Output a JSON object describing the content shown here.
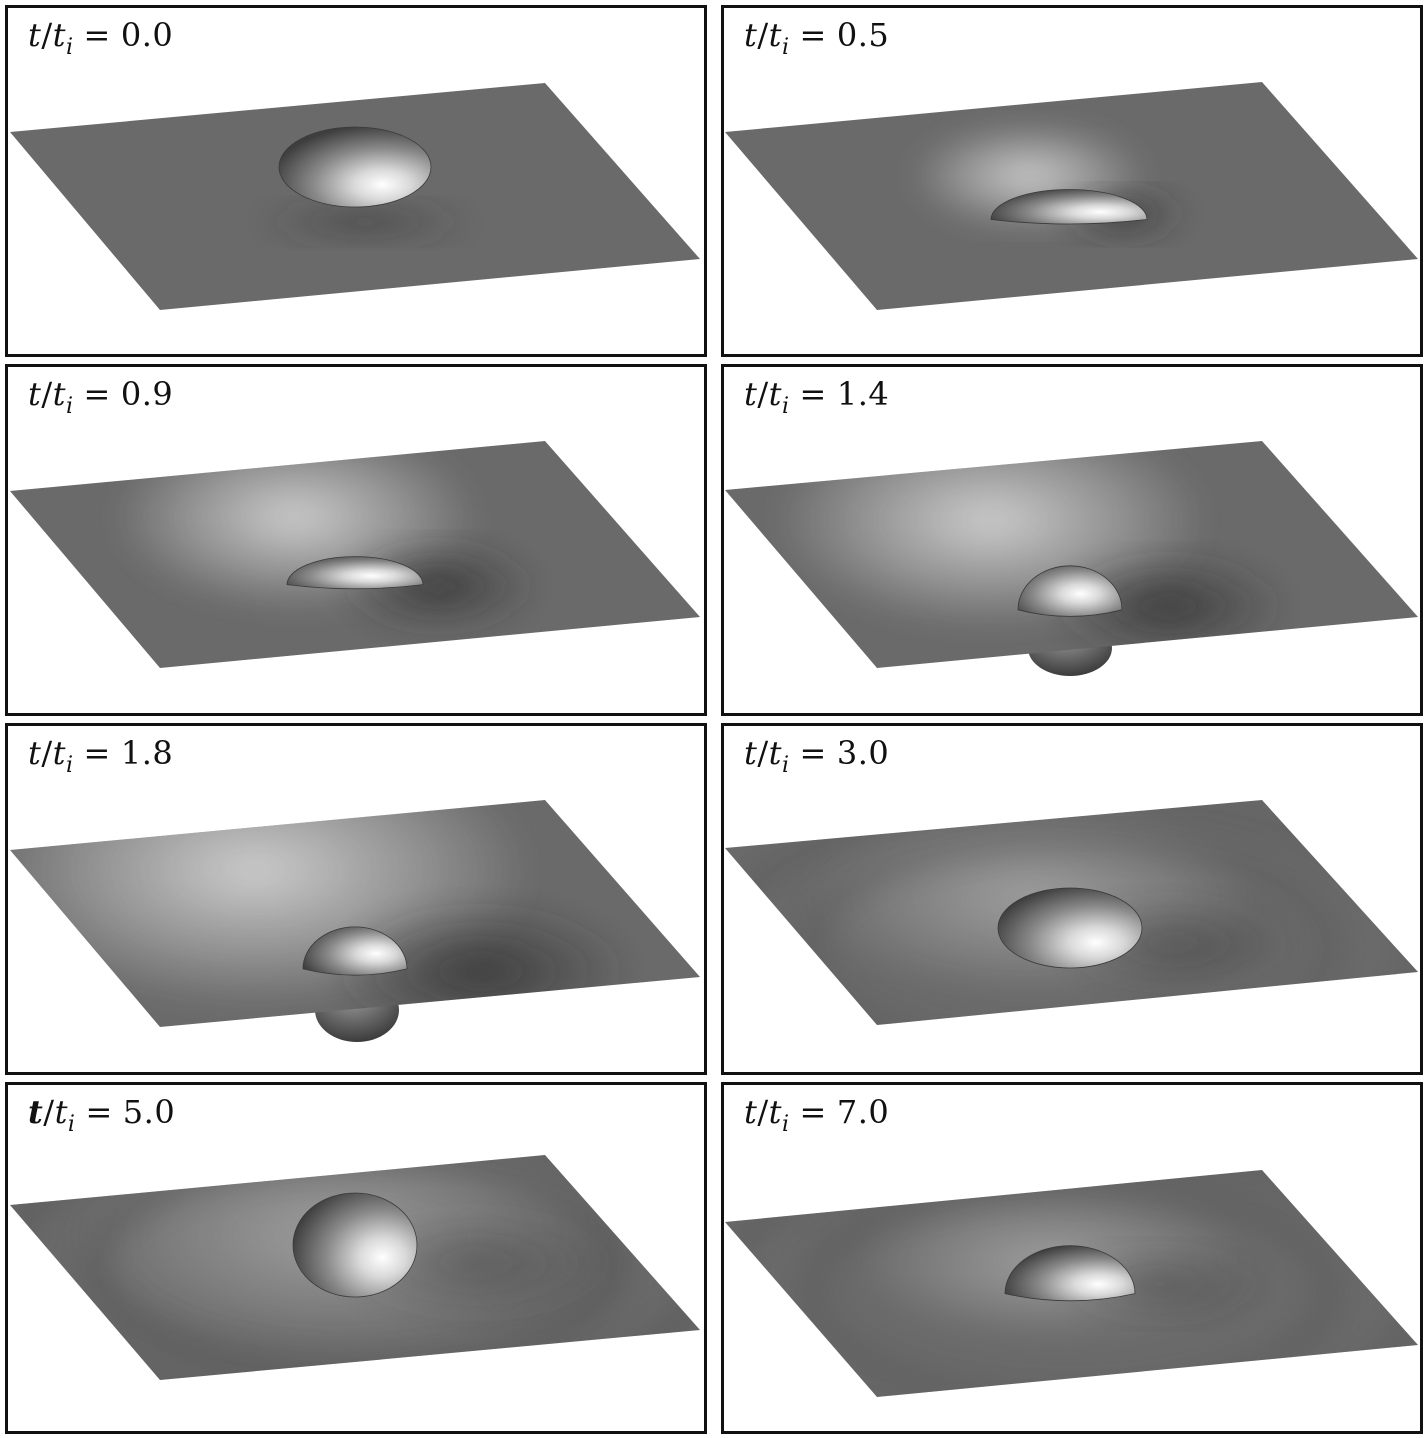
{
  "figure": {
    "panels": [
      {
        "label_var": "t",
        "label_sub": "i",
        "label_value": "0.0",
        "bold_t": false
      },
      {
        "label_var": "t",
        "label_sub": "i",
        "label_value": "0.5",
        "bold_t": false
      },
      {
        "label_var": "t",
        "label_sub": "i",
        "label_value": "0.9",
        "bold_t": false
      },
      {
        "label_var": "t",
        "label_sub": "i",
        "label_value": "1.4",
        "bold_t": false
      },
      {
        "label_var": "t",
        "label_sub": "i",
        "label_value": "1.8",
        "bold_t": false
      },
      {
        "label_var": "t",
        "label_sub": "i",
        "label_value": "3.0",
        "bold_t": false
      },
      {
        "label_var": "t",
        "label_sub": "i",
        "label_value": "5.0",
        "bold_t": true
      },
      {
        "label_var": "t",
        "label_sub": "i",
        "label_value": "7.0",
        "bold_t": false
      }
    ],
    "colors": {
      "surface": "#6a6a6a",
      "frame": "#111111",
      "background": "#ffffff"
    }
  }
}
